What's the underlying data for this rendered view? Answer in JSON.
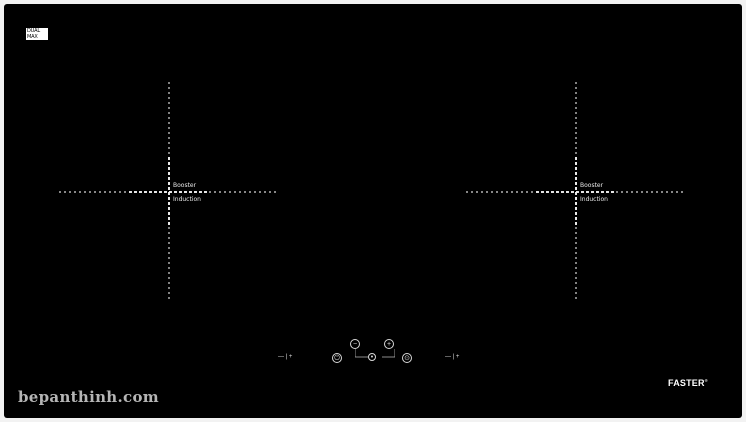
{
  "badge": {
    "line1": "DUAL",
    "line2": "MAX"
  },
  "zones": [
    {
      "label_top": "Booster",
      "label_bottom": "Induction"
    },
    {
      "label_top": "Booster",
      "label_bottom": "Induction"
    }
  ],
  "controls": {
    "left_slider": "— | +",
    "right_slider": "— | +",
    "minus_symbol": "−",
    "plus_symbol": "+",
    "power_symbol": "⏻",
    "lock_symbol": "⊙",
    "center_symbol": "•"
  },
  "brand": {
    "name": "FASTER",
    "mark": "®"
  },
  "watermark": "bepanthinh.com",
  "colors": {
    "panel": "#000000",
    "marks": "#e8e8e8",
    "frame": "#f2f2f2"
  },
  "icons": [
    "power-icon",
    "minus-icon",
    "plus-icon",
    "timer-icon",
    "lock-icon"
  ]
}
